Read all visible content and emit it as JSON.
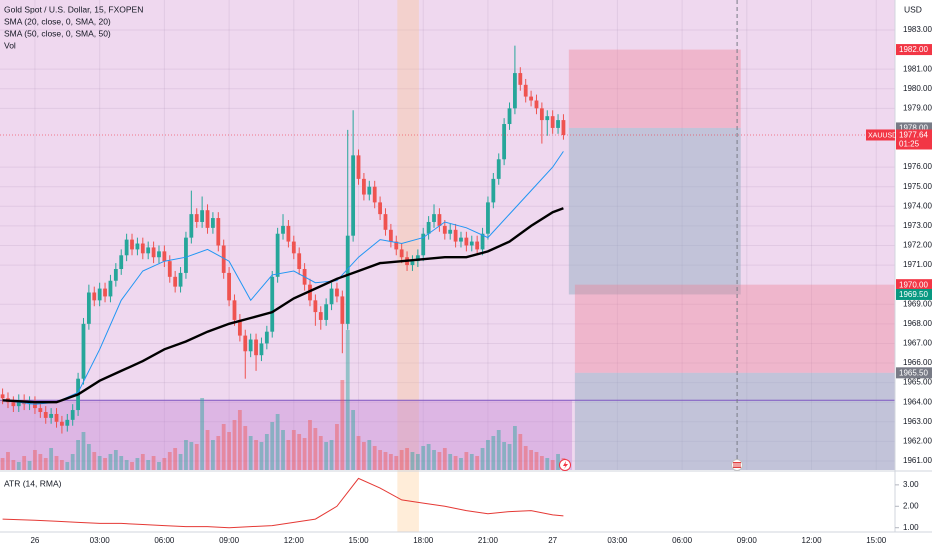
{
  "chart_data": [
    {
      "type": "candlestick",
      "title": "Gold Spot / U.S. Dollar, 15, FXOPEN",
      "axis_label": "USD",
      "volume_name": "Vol",
      "up_color": "#26a69a",
      "down_color": "#ef5350",
      "x": [
        -1.5,
        -1.25,
        -1,
        -0.75,
        -0.5,
        -0.25,
        0,
        0.25,
        0.5,
        0.75,
        1,
        1.25,
        1.5,
        1.75,
        2,
        2.25,
        2.5,
        2.75,
        3,
        3.25,
        3.5,
        3.75,
        4,
        4.25,
        4.5,
        4.75,
        5,
        5.25,
        5.5,
        5.75,
        6,
        6.25,
        6.5,
        6.75,
        7,
        7.25,
        7.5,
        7.75,
        8,
        8.25,
        8.5,
        8.75,
        9,
        9.25,
        9.5,
        9.75,
        10,
        10.25,
        10.5,
        10.75,
        11,
        11.25,
        11.5,
        11.75,
        12,
        12.25,
        12.5,
        12.75,
        13,
        13.25,
        13.5,
        13.75,
        14,
        14.25,
        14.5,
        14.75,
        15,
        15.25,
        15.5,
        15.75,
        16,
        16.25,
        16.5,
        16.75,
        17,
        17.25,
        17.5,
        17.75,
        18,
        18.25,
        18.5,
        18.75,
        19,
        19.25,
        19.5,
        19.75,
        20,
        20.25,
        20.5,
        20.75,
        21,
        21.25,
        21.5,
        21.75,
        22,
        22.25,
        22.5,
        22.75,
        23,
        23.25,
        23.5,
        23.75,
        24,
        24.25,
        24.5
      ],
      "open": [
        1964.4,
        1964.2,
        1964.0,
        1963.8,
        1964.1,
        1963.9,
        1964.0,
        1963.7,
        1963.5,
        1963.2,
        1963.4,
        1963.0,
        1962.8,
        1963.1,
        1963.6,
        1965.2,
        1968.0,
        1969.6,
        1969.2,
        1969.8,
        1969.4,
        1970.2,
        1970.8,
        1971.5,
        1972.3,
        1971.8,
        1972.1,
        1971.6,
        1971.9,
        1971.4,
        1971.7,
        1971.2,
        1970.4,
        1969.9,
        1970.6,
        1972.4,
        1973.6,
        1973.2,
        1973.8,
        1972.9,
        1973.4,
        1972.0,
        1970.6,
        1969.2,
        1968.2,
        1967.4,
        1966.6,
        1967.2,
        1966.4,
        1967.0,
        1967.6,
        1970.4,
        1972.6,
        1973.0,
        1972.2,
        1971.6,
        1970.8,
        1970.0,
        1969.2,
        1968.6,
        1968.2,
        1969.0,
        1969.8,
        1969.4,
        1968.0,
        1972.5,
        1976.6,
        1975.4,
        1974.6,
        1975.0,
        1974.2,
        1973.6,
        1972.8,
        1972.2,
        1971.8,
        1971.4,
        1971.0,
        1971.2,
        1971.5,
        1972.6,
        1973.2,
        1973.6,
        1973.0,
        1972.6,
        1972.8,
        1972.2,
        1972.4,
        1972.0,
        1972.2,
        1971.8,
        1972.6,
        1974.2,
        1975.4,
        1976.4,
        1978.2,
        1979.0,
        1980.8,
        1980.2,
        1979.6,
        1979.4,
        1979.0,
        1978.4,
        1978.6,
        1978.0,
        1978.4
      ],
      "high": [
        1964.7,
        1964.5,
        1964.3,
        1964.4,
        1964.4,
        1964.3,
        1964.3,
        1964.0,
        1963.8,
        1963.7,
        1963.7,
        1963.3,
        1963.4,
        1963.9,
        1965.5,
        1968.3,
        1970.0,
        1969.9,
        1970.1,
        1970.1,
        1970.5,
        1971.1,
        1971.8,
        1972.6,
        1972.6,
        1972.4,
        1972.4,
        1972.2,
        1972.2,
        1972.0,
        1972.0,
        1971.5,
        1970.7,
        1970.9,
        1972.7,
        1974.8,
        1973.9,
        1974.5,
        1974.1,
        1973.7,
        1973.7,
        1972.3,
        1970.9,
        1969.5,
        1968.5,
        1967.7,
        1967.5,
        1967.5,
        1967.3,
        1967.9,
        1970.7,
        1972.9,
        1973.6,
        1973.3,
        1972.5,
        1971.9,
        1971.1,
        1970.3,
        1969.5,
        1968.9,
        1969.3,
        1970.1,
        1970.1,
        1969.7,
        1977.9,
        1978.9,
        1976.9,
        1975.7,
        1975.3,
        1975.3,
        1974.5,
        1973.9,
        1973.1,
        1972.5,
        1972.1,
        1971.7,
        1971.5,
        1971.8,
        1972.9,
        1973.5,
        1974.1,
        1973.9,
        1973.3,
        1973.1,
        1973.1,
        1972.7,
        1972.7,
        1972.5,
        1972.5,
        1972.9,
        1974.5,
        1975.7,
        1976.7,
        1978.5,
        1979.3,
        1982.2,
        1981.1,
        1980.5,
        1979.9,
        1979.7,
        1979.3,
        1978.9,
        1978.9,
        1978.7,
        1978.7
      ],
      "low": [
        1963.9,
        1963.7,
        1963.5,
        1963.5,
        1963.6,
        1963.6,
        1963.4,
        1963.2,
        1962.9,
        1962.9,
        1962.7,
        1962.4,
        1962.5,
        1962.8,
        1963.3,
        1964.9,
        1967.7,
        1968.9,
        1968.9,
        1969.1,
        1969.1,
        1969.9,
        1970.5,
        1971.2,
        1971.5,
        1971.5,
        1971.3,
        1971.3,
        1971.1,
        1971.1,
        1970.9,
        1970.1,
        1969.6,
        1969.6,
        1970.3,
        1972.1,
        1972.9,
        1972.9,
        1972.6,
        1972.6,
        1971.7,
        1970.3,
        1968.9,
        1967.9,
        1967.1,
        1965.2,
        1966.3,
        1965.6,
        1966.1,
        1966.7,
        1967.3,
        1970.1,
        1972.3,
        1971.9,
        1971.3,
        1970.5,
        1969.7,
        1968.9,
        1967.9,
        1967.7,
        1967.9,
        1968.7,
        1969.1,
        1966.5,
        1967.7,
        1972.2,
        1975.1,
        1974.3,
        1974.3,
        1973.9,
        1973.3,
        1972.5,
        1971.9,
        1971.5,
        1971.1,
        1970.7,
        1970.7,
        1970.9,
        1971.2,
        1972.3,
        1972.9,
        1972.7,
        1972.3,
        1972.3,
        1971.9,
        1971.9,
        1971.7,
        1971.7,
        1971.5,
        1971.5,
        1972.3,
        1973.9,
        1975.1,
        1976.1,
        1977.9,
        1978.7,
        1979.9,
        1979.3,
        1979.1,
        1978.7,
        1977.2,
        1977.6,
        1977.7,
        1977.7,
        1977.4
      ],
      "close": [
        1964.2,
        1964.0,
        1963.8,
        1964.1,
        1963.9,
        1964.0,
        1963.7,
        1963.5,
        1963.2,
        1963.4,
        1963.0,
        1962.8,
        1963.1,
        1963.6,
        1965.2,
        1968.0,
        1969.6,
        1969.2,
        1969.8,
        1969.4,
        1970.2,
        1970.8,
        1971.5,
        1972.3,
        1971.8,
        1972.1,
        1971.6,
        1971.9,
        1971.4,
        1971.7,
        1971.2,
        1970.4,
        1969.9,
        1970.6,
        1972.4,
        1973.6,
        1973.2,
        1973.8,
        1972.9,
        1973.4,
        1972.0,
        1970.6,
        1969.2,
        1968.2,
        1967.4,
        1966.6,
        1967.2,
        1966.4,
        1967.0,
        1967.6,
        1970.4,
        1972.6,
        1973.0,
        1972.2,
        1971.6,
        1970.8,
        1970.0,
        1969.2,
        1968.6,
        1968.2,
        1969.0,
        1969.8,
        1969.4,
        1968.0,
        1972.5,
        1976.6,
        1975.4,
        1974.6,
        1975.0,
        1974.2,
        1973.6,
        1972.8,
        1972.2,
        1971.8,
        1971.4,
        1971.0,
        1971.2,
        1971.5,
        1972.6,
        1973.2,
        1973.6,
        1973.0,
        1972.6,
        1972.8,
        1972.2,
        1972.4,
        1972.0,
        1972.2,
        1971.8,
        1972.6,
        1974.2,
        1975.4,
        1976.4,
        1978.2,
        1979.0,
        1980.8,
        1980.2,
        1979.6,
        1979.4,
        1979.0,
        1978.4,
        1978.6,
        1978.0,
        1978.4,
        1977.64
      ],
      "volume": [
        12,
        18,
        10,
        8,
        14,
        9,
        20,
        16,
        12,
        22,
        14,
        10,
        8,
        16,
        30,
        38,
        26,
        18,
        14,
        12,
        16,
        20,
        14,
        10,
        8,
        12,
        16,
        10,
        14,
        8,
        12,
        18,
        22,
        16,
        30,
        28,
        26,
        72,
        40,
        30,
        34,
        46,
        38,
        50,
        60,
        44,
        34,
        30,
        28,
        36,
        48,
        56,
        40,
        30,
        40,
        36,
        32,
        50,
        42,
        34,
        28,
        30,
        46,
        90,
        140,
        60,
        34,
        28,
        30,
        24,
        20,
        18,
        16,
        14,
        20,
        22,
        18,
        16,
        24,
        26,
        20,
        18,
        22,
        16,
        14,
        12,
        18,
        16,
        14,
        22,
        30,
        34,
        40,
        28,
        26,
        44,
        36,
        24,
        20,
        18,
        14,
        12,
        10,
        16,
        12
      ],
      "indicators": [
        {
          "name": "SMA (20, close, 0, SMA, 20)",
          "color": "#2196f3",
          "width": 1,
          "x": [
            -1.5,
            0,
            1,
            2,
            3,
            4,
            5,
            6,
            7,
            8,
            9,
            10,
            11,
            12,
            13,
            14,
            15,
            16,
            17,
            18,
            19,
            20,
            21,
            22,
            23,
            24,
            24.5
          ],
          "values": [
            1964.1,
            1963.9,
            1964.0,
            1964.5,
            1966.7,
            1969.2,
            1970.7,
            1971.2,
            1971.4,
            1971.8,
            1971.2,
            1969.2,
            1970.5,
            1970.7,
            1970.1,
            1970.2,
            1971.4,
            1972.3,
            1972.1,
            1972.4,
            1973.2,
            1972.9,
            1972.4,
            1973.6,
            1974.8,
            1976.0,
            1976.8
          ]
        },
        {
          "name": "SMA (50, close, 0, SMA, 50)",
          "color": "#000000",
          "width": 2.4,
          "x": [
            -1.5,
            0,
            1,
            2,
            3,
            4,
            5,
            6,
            7,
            8,
            9,
            10,
            11,
            12,
            13,
            14,
            15,
            16,
            17,
            18,
            19,
            20,
            21,
            22,
            23,
            24,
            24.5
          ],
          "values": [
            1964.1,
            1964.0,
            1964.0,
            1964.4,
            1965.1,
            1965.6,
            1966.1,
            1966.7,
            1967.1,
            1967.6,
            1968.0,
            1968.3,
            1968.6,
            1969.3,
            1969.8,
            1970.3,
            1970.7,
            1971.1,
            1971.2,
            1971.3,
            1971.4,
            1971.4,
            1971.7,
            1972.2,
            1973.0,
            1973.7,
            1973.9
          ]
        }
      ],
      "xlim": [
        -1.62,
        39.87
      ],
      "xticks": [
        {
          "value": 0,
          "label": "26"
        },
        {
          "value": 3,
          "label": "03:00"
        },
        {
          "value": 6,
          "label": "06:00"
        },
        {
          "value": 9,
          "label": "09:00"
        },
        {
          "value": 12,
          "label": "12:00"
        },
        {
          "value": 15,
          "label": "15:00"
        },
        {
          "value": 18,
          "label": "18:00"
        },
        {
          "value": 21,
          "label": "21:00"
        },
        {
          "value": 24,
          "label": "27"
        },
        {
          "value": 27,
          "label": "03:00"
        },
        {
          "value": 30,
          "label": "06:00"
        },
        {
          "value": 33,
          "label": "09:00"
        },
        {
          "value": 36,
          "label": "12:00"
        },
        {
          "value": 39,
          "label": "15:00"
        }
      ],
      "ylim": [
        1960.54,
        1984.53
      ],
      "yticks": [
        {
          "value": 1983,
          "label": "1983.00"
        },
        {
          "value": 1981,
          "label": "1981.00"
        },
        {
          "value": 1980,
          "label": "1980.00"
        },
        {
          "value": 1979,
          "label": "1979.00"
        },
        {
          "value": 1976,
          "label": "1976.00"
        },
        {
          "value": 1975,
          "label": "1975.00"
        },
        {
          "value": 1974,
          "label": "1974.00"
        },
        {
          "value": 1973,
          "label": "1973.00"
        },
        {
          "value": 1972,
          "label": "1972.00"
        },
        {
          "value": 1971,
          "label": "1971.00"
        },
        {
          "value": 1969,
          "label": "1969.00"
        },
        {
          "value": 1968,
          "label": "1968.00"
        },
        {
          "value": 1967,
          "label": "1967.00"
        },
        {
          "value": 1966,
          "label": "1966.00"
        },
        {
          "value": 1965,
          "label": "1965.00"
        },
        {
          "value": 1964,
          "label": "1964.00"
        },
        {
          "value": 1963,
          "label": "1963.00"
        },
        {
          "value": 1962,
          "label": "1962.00"
        },
        {
          "value": 1961,
          "label": "1961.00"
        }
      ],
      "grid": true,
      "zones": [
        {
          "x": [
            -1.62,
            24.9
          ],
          "top": 1964.1,
          "bottom": 1960.54,
          "color": "rgba(190,120,210,0.35)"
        },
        {
          "x": [
            24.75,
            32.72
          ],
          "top": 1982,
          "bottom": 1978,
          "color": "rgba(242,120,140,0.35)"
        },
        {
          "x": [
            24.75,
            32.72
          ],
          "top": 1978,
          "bottom": 1969.5,
          "color": "rgba(140,170,190,0.45)"
        },
        {
          "x": [
            25.03,
            39.87
          ],
          "top": 1970,
          "bottom": 1965.5,
          "color": "rgba(242,120,140,0.35)"
        },
        {
          "x": [
            25.03,
            39.87
          ],
          "top": 1965.5,
          "bottom": 1960.54,
          "color": "rgba(140,170,190,0.45)"
        }
      ],
      "hline": 1964.1,
      "session": [
        16.8,
        17.8
      ],
      "vline": 32.55,
      "price_markers": [
        {
          "value": 1982,
          "label": "1982.00",
          "color": "#f23645"
        },
        {
          "value": 1978,
          "label": "1978.00",
          "color": "#787b86"
        },
        {
          "value": 1970,
          "label": "1970.00",
          "color": "#f23645"
        },
        {
          "value": 1969.5,
          "label": "1969.50",
          "color": "#089981"
        },
        {
          "value": 1965.5,
          "label": "1965.50",
          "color": "#787b86"
        }
      ],
      "last_price": {
        "symbol": "XAUUSD",
        "value": 1977.64,
        "label": "1977.64",
        "countdown": "01:25",
        "color": "#f23645"
      }
    },
    {
      "type": "line",
      "title": "ATR (14, RMA)",
      "color": "#e53935",
      "x": [
        -1.5,
        0,
        1,
        2,
        3,
        4,
        5,
        6,
        7,
        8,
        9,
        10,
        11,
        12,
        13,
        14,
        15,
        16,
        17,
        18,
        19,
        20,
        21,
        22,
        23,
        24,
        24.5
      ],
      "values": [
        1.4,
        1.35,
        1.3,
        1.25,
        1.2,
        1.2,
        1.15,
        1.1,
        1.05,
        1.05,
        1.0,
        1.05,
        1.1,
        1.25,
        1.4,
        2.0,
        3.3,
        2.85,
        2.3,
        2.15,
        2.0,
        1.8,
        1.65,
        1.75,
        1.8,
        1.6,
        1.55
      ],
      "ylim": [
        0.8,
        3.6
      ],
      "yticks": [
        {
          "value": 1,
          "label": "1.00"
        },
        {
          "value": 2,
          "label": "2.00"
        },
        {
          "value": 3,
          "label": "3.00"
        }
      ]
    }
  ]
}
